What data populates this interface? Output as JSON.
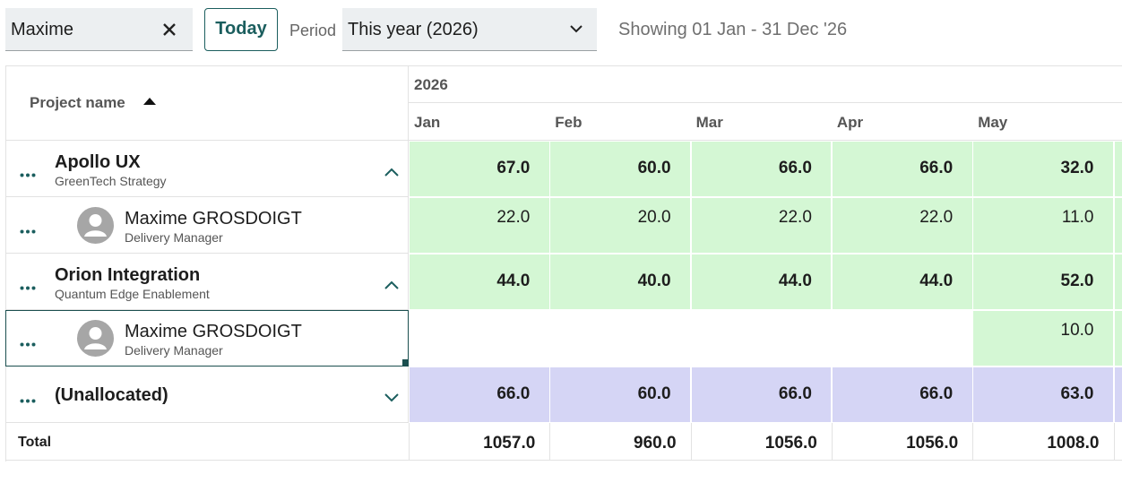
{
  "toolbar": {
    "search": "Maxime",
    "today": "Today",
    "period_label": "Period",
    "period": "This year (2026)",
    "showing": "Showing 01 Jan - 31 Dec '26"
  },
  "table": {
    "column_header": "Project name",
    "year": "2026",
    "months": [
      "Jan",
      "Feb",
      "Mar",
      "Apr",
      "May"
    ],
    "colors": {
      "allocated": "#d4f7d4",
      "unallocated": "#d5d5f5"
    },
    "projects": [
      {
        "name": "Apollo UX",
        "client": "GreenTech Strategy",
        "values": [
          "67.0",
          "60.0",
          "66.0",
          "66.0",
          "32.0"
        ],
        "members": [
          {
            "name": "Maxime GROSDOIGT",
            "role": "Delivery Manager",
            "values": [
              "22.0",
              "20.0",
              "22.0",
              "22.0",
              "11.0"
            ]
          }
        ]
      },
      {
        "name": "Orion Integration",
        "client": "Quantum Edge Enablement",
        "values": [
          "44.0",
          "40.0",
          "44.0",
          "44.0",
          "52.0"
        ],
        "members": [
          {
            "name": "Maxime GROSDOIGT",
            "role": "Delivery Manager",
            "values": [
              null,
              null,
              null,
              null,
              "10.0"
            ]
          }
        ]
      }
    ],
    "unallocated": {
      "name": "(Unallocated)",
      "values": [
        "66.0",
        "60.0",
        "66.0",
        "66.0",
        "63.0"
      ]
    },
    "total": {
      "label": "Total",
      "values": [
        "1057.0",
        "960.0",
        "1056.0",
        "1056.0",
        "1008.0"
      ]
    }
  }
}
